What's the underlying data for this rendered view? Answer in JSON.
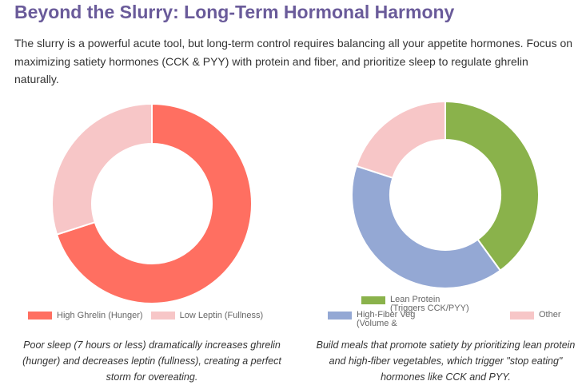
{
  "title": "Beyond the Slurry: Long-Term Hormonal Harmony",
  "intro": "The slurry is a powerful acute tool, but long-term control requires balancing all your appetite hormones. Focus on maximizing satiety hormones (CCK & PYY) with protein and fiber, and prioritize sleep to regulate ghrelin naturally.",
  "chart_data": [
    {
      "type": "pie",
      "donut": true,
      "categories": [
        "High Ghrelin (Hunger)",
        "Low Leptin (Fullness)"
      ],
      "values": [
        70,
        30
      ],
      "colors": [
        "#ff6f61",
        "#f7c6c7"
      ],
      "caption": "Poor sleep (7 hours or less) dramatically increases ghrelin (hunger) and decreases leptin (fullness), creating a perfect storm for overeating."
    },
    {
      "type": "pie",
      "donut": true,
      "categories": [
        "Lean Protein (Triggers CCK/PYY)",
        "High-Fiber Veg (Volume &",
        "Other"
      ],
      "values": [
        40,
        40,
        20
      ],
      "colors": [
        "#8ab24b",
        "#94a8d4",
        "#f7c6c7"
      ],
      "caption": "Build meals that promote satiety by prioritizing lean protein and high-fiber vegetables, which trigger \"stop eating\" hormones like CCK and PYY."
    }
  ]
}
